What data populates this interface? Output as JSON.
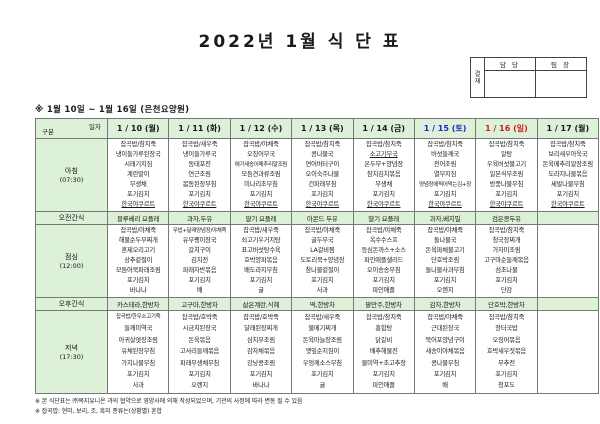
{
  "title": "2022년 1월 식 단 표",
  "subtitle": "※ 1월 10일 ~ 1월 16일 (은천요양원)",
  "approval": {
    "stamp_label": "결재",
    "columns": [
      "담 당",
      "팀 장"
    ]
  },
  "table": {
    "corner": {
      "top": "일자",
      "bottom": "구분"
    },
    "columns": [
      {
        "label": "1 / 10 (월)",
        "color": "#1a1a1a"
      },
      {
        "label": "1 / 11 (화)",
        "color": "#1a1a1a"
      },
      {
        "label": "1 / 12 (수)",
        "color": "#1a1a1a"
      },
      {
        "label": "1 / 13 (목)",
        "color": "#1a1a1a"
      },
      {
        "label": "1 / 14 (금)",
        "color": "#1a1a1a"
      },
      {
        "label": "1 / 15 (토)",
        "color": "#2323cc"
      },
      {
        "label": "1 / 16 (일)",
        "color": "#cc2020"
      },
      {
        "label": "1 / 17 (월)",
        "color": "#1a1a1a"
      }
    ],
    "rows": [
      {
        "label": "아침",
        "time": "(07:30)",
        "cells": [
          [
            "잡곡밥/참치죽",
            "냉이들가루된장국",
            "시래기지짐",
            "계란말이",
            "무생채",
            "포기김치",
            "한국야쿠르트"
          ],
          [
            "잡곡밥/새우죽",
            "냉이들가루국",
            "동태포전",
            "연근조림",
            "봄동된장무침",
            "포기김치",
            "한국야쿠르트"
          ],
          [
            "잡곡밥/야채죽",
            "오징어무국",
            "애기새송이메추리알조림",
            "모듬견과류조림",
            "미나리초무침",
            "포기김치",
            "한국야쿠르트"
          ],
          [
            "잡곡밥/참치죽",
            "콩나물국",
            "연어버터구이",
            "오이숙주나물",
            "건파래무침",
            "포기김치",
            "한국야쿠르트"
          ],
          [
            "잡곡밥/참치죽",
            "소고기무국",
            "온두부+양념장",
            "참치김치볶음",
            "무생채",
            "포기김치",
            "한국야쿠르트"
          ],
          [
            "잡곡밥/참치죽",
            "버섯들깨국",
            "전어조림",
            "열무지짐",
            "양념장에찍어먹는김+장",
            "포기김치",
            "한국야쿠르트"
          ],
          [
            "잡곡밥/참치죽",
            "알탕",
            "우육버섯불고기",
            "일본식무조림",
            "방풍나물무침",
            "포기김치",
            "한국야쿠르트"
          ],
          [
            "잡곡밥/참치죽",
            "보리새우아욱국",
            "돈육메추리알장조림",
            "도라지나물볶음",
            "세발나물무침",
            "포기김치",
            "한국야쿠르트"
          ]
        ]
      },
      {
        "label": "오전간식",
        "time": "",
        "cells": [
          [
            "블루베리 요플레"
          ],
          [
            "과자,두유"
          ],
          [
            "딸기 요플레"
          ],
          [
            "아몬드 두유"
          ],
          [
            "딸기 요플레"
          ],
          [
            "과자,베지밀"
          ],
          [
            "검은콩두유"
          ],
          []
        ]
      },
      {
        "label": "점심",
        "time": "(12:00)",
        "cells": [
          [
            "잡곡밥/야채죽",
            "해물순두부찌개",
            "훈제오리고기",
            "상추겉절이",
            "모둠어묵파래조림",
            "포기김치",
            "바나나"
          ],
          [
            "무밥+달래양념장/야채죽",
            "유부팽이장국",
            "갈치구이",
            "김치전",
            "파래자반볶음",
            "포기김치",
            "배"
          ],
          [
            "잡곡밥/새우죽",
            "쇠고기우거지탕",
            "표고버섯탕수육",
            "호박양파볶음",
            "배도라지무침",
            "포기김치",
            "귤"
          ],
          [
            "잡곡밥/야채죽",
            "굴두부국",
            "LA갈비찜",
            "도토리묵+양념장",
            "참나물겉절이",
            "포기김치",
            "사과"
          ],
          [
            "잡곡밥/야채죽",
            "옥수수스프",
            "등심돈까스+소스",
            "파인애플샐러드",
            "오이송송무침",
            "포기김치",
            "파인애플"
          ],
          [
            "잡곡밥/야채죽",
            "돌나물국",
            "돈육파채불고기",
            "단호박조림",
            "돌나물사과무침",
            "포기김치",
            "오렌지"
          ],
          [
            "잡곡밥/참치죽",
            "청국장찌개",
            "가자미조림",
            "고구마순들깨볶음",
            "섬초나물",
            "포기김치",
            "단감"
          ],
          []
        ]
      },
      {
        "label": "오후간식",
        "time": "",
        "cells": [
          [
            "카스테라,한방차"
          ],
          [
            "고구마,한방차"
          ],
          [
            "삶은계란,식혜"
          ],
          [
            "떡,한방차"
          ],
          [
            "팥만주,한방차"
          ],
          [
            "감자,한방차"
          ],
          [
            "단호박,한방차"
          ],
          []
        ]
      },
      {
        "label": "저녁",
        "time": "(17:30)",
        "cells": [
          [
            "잡곡밥/한우소고기죽",
            "들깨미역국",
            "아귀살엿장조림",
            "유채된장무침",
            "가지나물무침",
            "포기김치",
            "사과"
          ],
          [
            "잡곡밥/호박죽",
            "시금치된장국",
            "돈육볶음",
            "고사리들깨볶음",
            "파래무생채무침",
            "포기김치",
            "오렌지"
          ],
          [
            "잡곡밥/호박죽",
            "달래된장찌개",
            "삼치무조림",
            "감자채볶음",
            "강낭콩조림",
            "포기김치",
            "바나나"
          ],
          [
            "잡곡밥/새우죽",
            "물메기찌개",
            "돈육마늘장조림",
            "깻잎순지짐이",
            "우엉깨소스무침",
            "포기김치",
            "귤"
          ],
          [
            "잡곡밥/참치죽",
            "홍합탕",
            "닭갈비",
            "배추해물전",
            "물미역+초고추장",
            "포기김치",
            "파인애플"
          ],
          [
            "잡곡밥/야채죽",
            "근대된장국",
            "북어포양념구이",
            "새송이야채볶음",
            "콩나물무침",
            "포기김치",
            "배"
          ],
          [
            "잡곡밥/참치죽",
            "장터국밥",
            "오징어볶음",
            "호박새우젓볶음",
            "부추전",
            "포기김치",
            "청포도"
          ],
          []
        ]
      }
    ],
    "underlined_items": [
      "한국야쿠르트",
      "소고기무국"
    ]
  },
  "notes": [
    "※ 본 식단표는 ㈜복지유니온 과의 협약으로 영양사에 의해 작성되었으며, 기관의 사정에 따라 변동 될 수 있음",
    "※ 잡곡밥: 현미, 보리, 조, 흑미 종류는(상황별) 혼합"
  ]
}
